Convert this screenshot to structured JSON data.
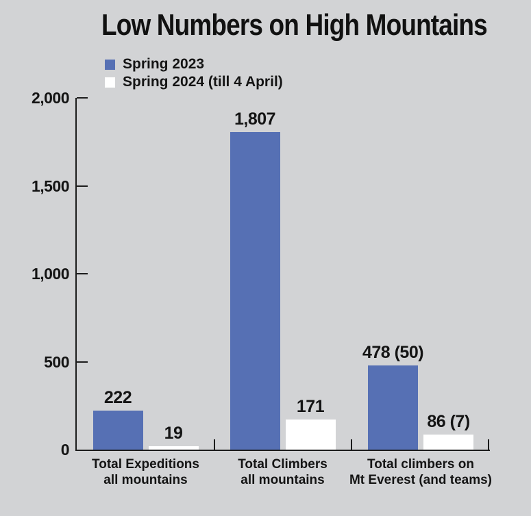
{
  "title": "Low Numbers on High Mountains",
  "legend": {
    "items": [
      {
        "label": "Spring 2023",
        "color": "#5670b4"
      },
      {
        "label": "Spring 2024 (till 4 April)",
        "color": "#ffffff"
      }
    ]
  },
  "colors": {
    "background": "#d2d3d5",
    "axis": "#1c1c1c",
    "text": "#141414",
    "bar_spring_2023": "#5670b4",
    "bar_spring_2024": "#ffffff"
  },
  "chart_data": {
    "type": "bar",
    "title": "Low Numbers on High Mountains",
    "categories": [
      "Total Expeditions all mountains",
      "Total Climbers all mountains",
      "Total climbers on Mt Everest (and teams)"
    ],
    "categories_lines": [
      [
        "Total Expeditions",
        "all mountains"
      ],
      [
        "Total Climbers",
        "all mountains"
      ],
      [
        "Total climbers on",
        "Mt Everest (and teams)"
      ]
    ],
    "series": [
      {
        "name": "Spring 2023",
        "color": "#5670b4",
        "values": [
          222,
          1807,
          478
        ],
        "data_labels": [
          "222",
          "1,807",
          "478 (50)"
        ]
      },
      {
        "name": "Spring 2024 (till 4 April)",
        "color": "#ffffff",
        "values": [
          19,
          171,
          86
        ],
        "data_labels": [
          "19",
          "171",
          "86 (7)"
        ]
      }
    ],
    "ylim": [
      0,
      2000
    ],
    "yticks": [
      0,
      500,
      1000,
      1500,
      2000
    ],
    "ytick_labels": [
      "0",
      "500",
      "1,000",
      "1,500",
      "2,000"
    ],
    "grid": false,
    "legend_position": "top-left"
  }
}
